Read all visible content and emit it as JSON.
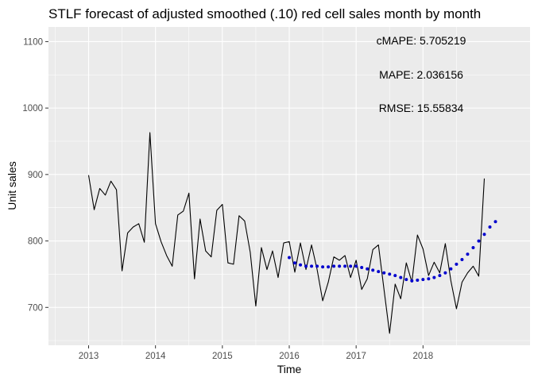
{
  "chart_data": {
    "type": "line",
    "title": "STLF forecast of adjusted smoothed (.10) red cell sales month by month",
    "xlabel": "Time",
    "ylabel": "Unit sales",
    "xlim": [
      2012.4,
      2019.6
    ],
    "ylim": [
      643,
      1122
    ],
    "x_ticks": [
      2013,
      2014,
      2015,
      2016,
      2017,
      2018
    ],
    "x_tick_labels": [
      "2013",
      "2014",
      "2015",
      "2016",
      "2017",
      "2018"
    ],
    "y_ticks": [
      700,
      800,
      900,
      1000,
      1100
    ],
    "y_tick_labels": [
      "700",
      "800",
      "900",
      "1000",
      "1100"
    ],
    "grid": true,
    "legend": "none",
    "colors": {
      "panel": "#ebebeb",
      "grid": "#ffffff",
      "actual": "#000000",
      "forecast": "#0000cd"
    },
    "series": [
      {
        "style": "line",
        "start": 2013,
        "step_months": 1,
        "values": [
          899,
          847,
          879,
          869,
          890,
          877,
          755,
          812,
          821,
          826,
          798,
          963,
          826,
          799,
          778,
          762,
          839,
          845,
          872,
          743,
          833,
          785,
          776,
          846,
          855,
          767,
          765,
          838,
          830,
          783,
          702,
          790,
          757,
          785,
          745,
          797,
          799,
          753,
          797,
          757,
          794,
          757,
          710,
          738,
          776,
          771,
          778,
          745,
          771,
          727,
          743,
          787,
          794,
          727,
          661,
          735,
          713,
          767,
          738,
          809,
          788,
          748,
          768,
          752,
          796,
          740,
          698,
          738,
          752,
          762,
          747,
          894
        ]
      },
      {
        "style": "points",
        "start": 2016,
        "step_months": 1,
        "values": [
          775,
          767,
          764,
          762,
          762,
          762,
          761,
          761,
          762,
          762,
          762,
          762,
          762,
          760,
          758,
          756,
          754,
          752,
          750,
          748,
          745,
          742,
          740,
          741,
          742,
          743,
          745,
          748,
          752,
          758,
          765,
          772,
          780,
          790,
          800,
          810,
          821,
          829
        ]
      }
    ],
    "annotations": [
      "cMAPE:  5.705219",
      "MAPE:  2.036156",
      "RMSE:  15.55834"
    ]
  }
}
